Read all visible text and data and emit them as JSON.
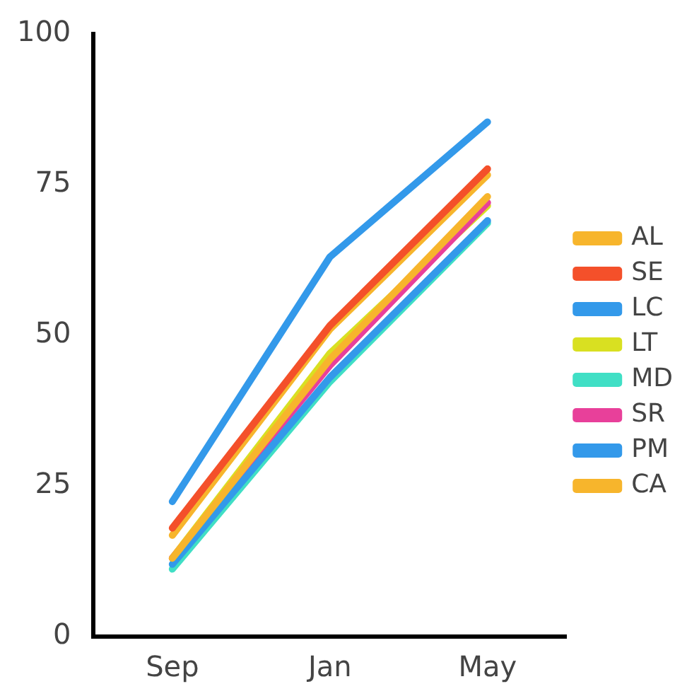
{
  "chart_data": {
    "type": "line",
    "categories": [
      "Sep",
      "Jan",
      "May"
    ],
    "series": [
      {
        "name": "AL",
        "color": "#f7b52c",
        "values": [
          16.8,
          51,
          76.6
        ]
      },
      {
        "name": "SE",
        "color": "#f4502a",
        "values": [
          18,
          51.6,
          77.6
        ]
      },
      {
        "name": "LC",
        "color": "#3399ea",
        "values": [
          22.4,
          63,
          85.4
        ]
      },
      {
        "name": "LT",
        "color": "#d9e021",
        "values": [
          13,
          47,
          71.5
        ]
      },
      {
        "name": "MD",
        "color": "#40dfc5",
        "values": [
          11.2,
          42.3,
          68.6
        ]
      },
      {
        "name": "SR",
        "color": "#e8409a",
        "values": [
          13,
          45,
          72
        ]
      },
      {
        "name": "PM",
        "color": "#3399ea",
        "values": [
          12,
          43,
          69
        ]
      },
      {
        "name": "CA",
        "color": "#f7b52c",
        "values": [
          13,
          46,
          73
        ]
      }
    ],
    "ylim": [
      0,
      100
    ],
    "yticks": [
      0,
      25,
      50,
      75,
      100
    ],
    "grid": false,
    "legend": "right",
    "marker": "none",
    "line_style": "solid"
  }
}
